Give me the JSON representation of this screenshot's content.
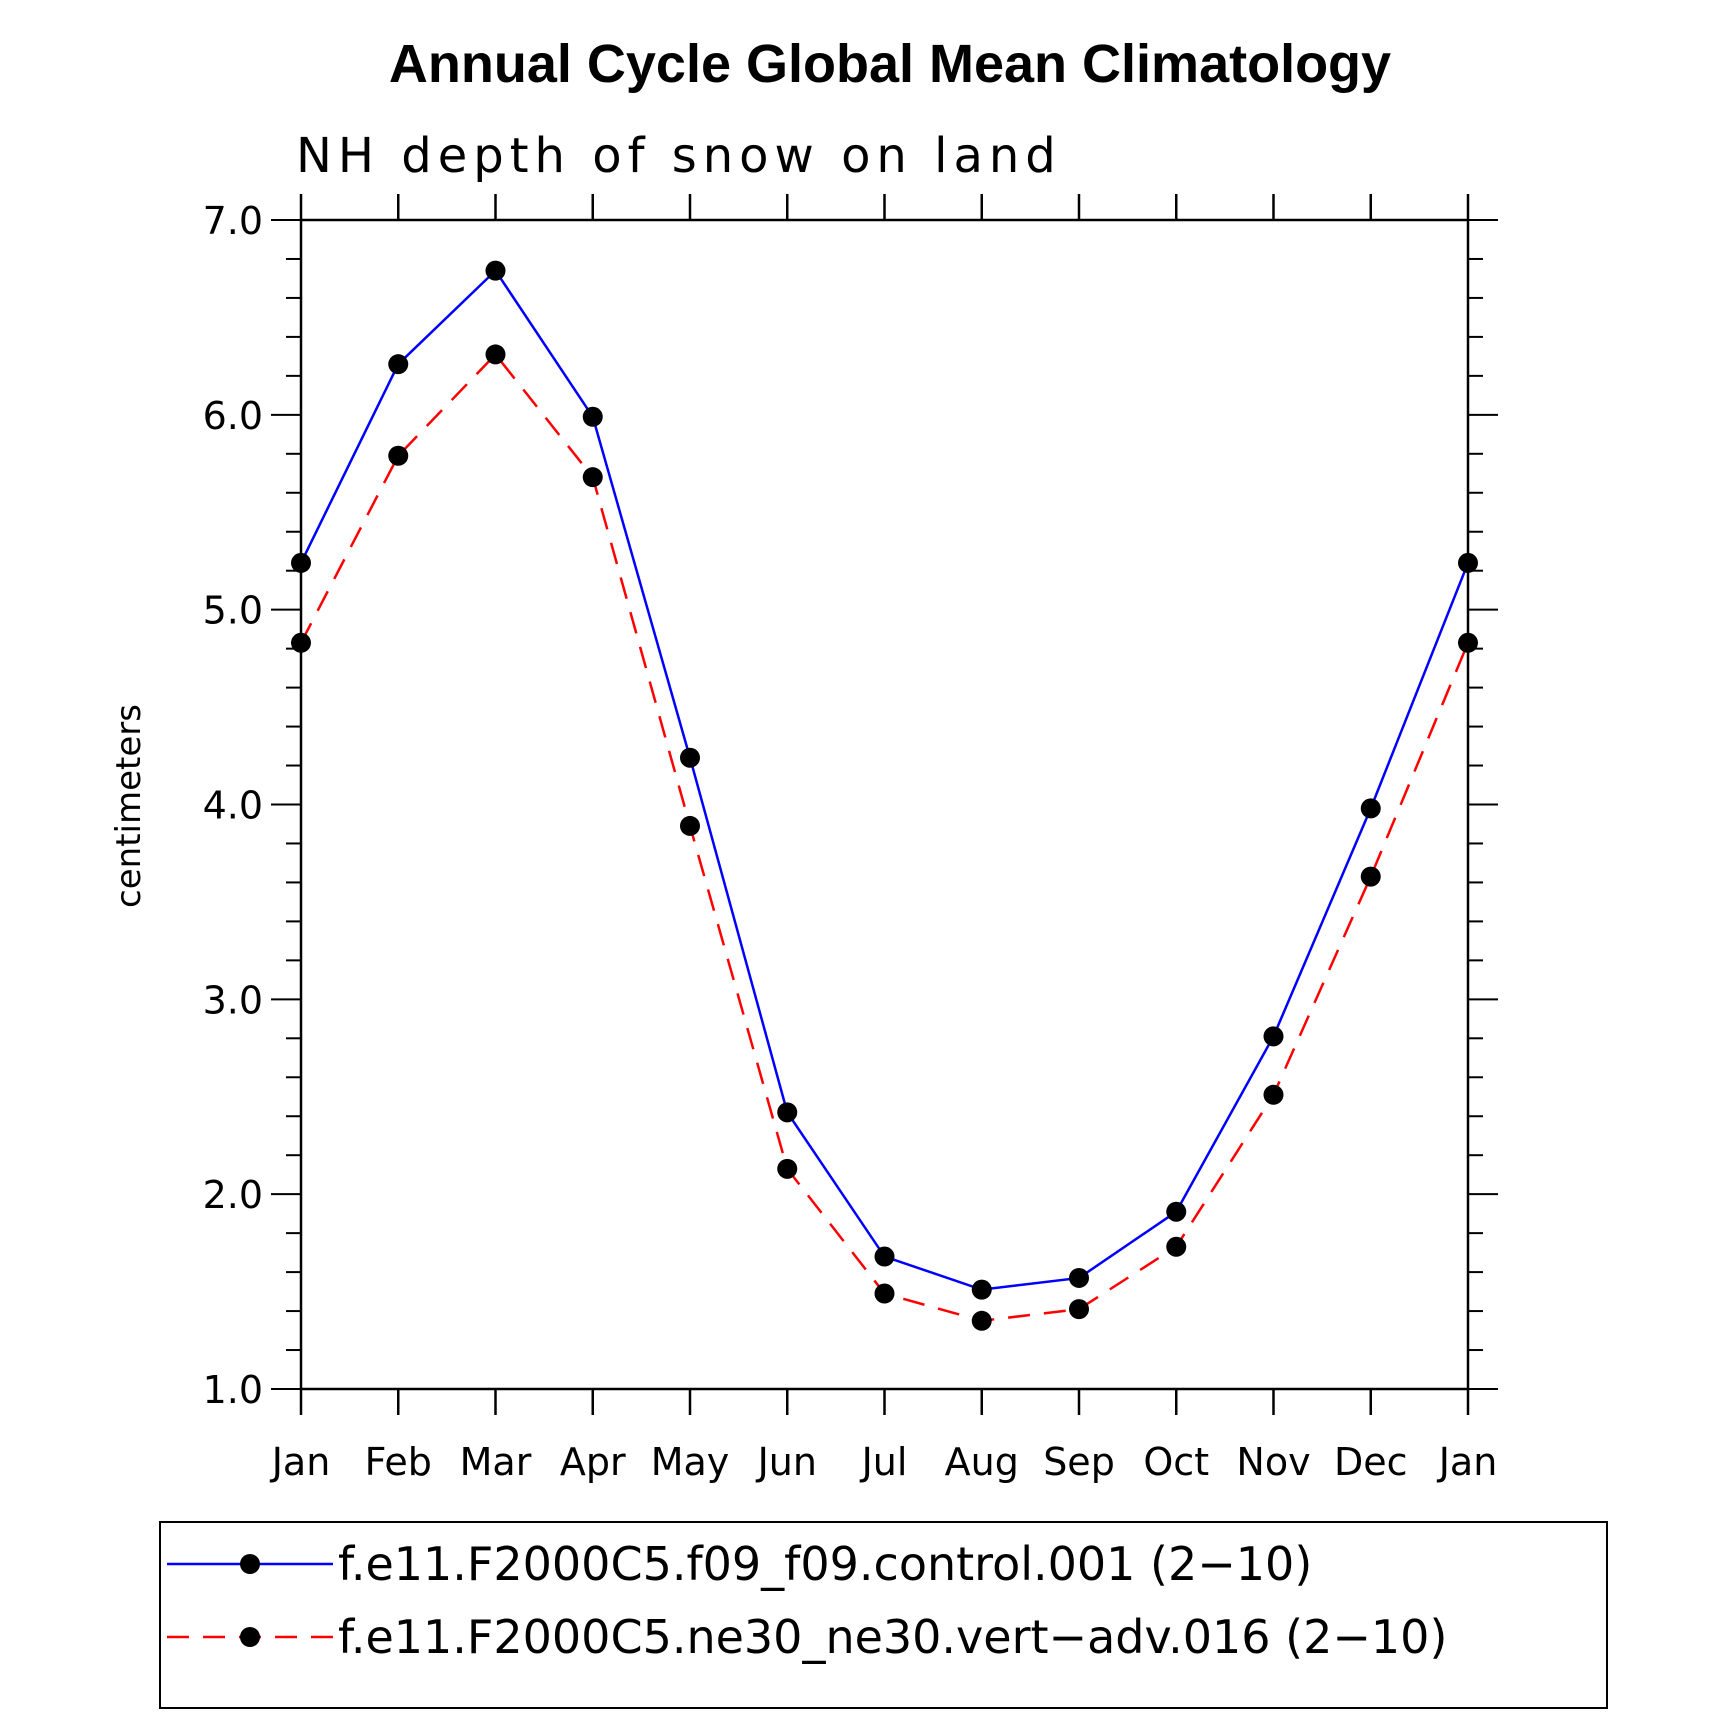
{
  "chart_data": {
    "type": "line",
    "title": "Annual Cycle Global Mean Climatology",
    "subtitle": "NH depth of snow on land",
    "xlabel": "",
    "ylabel": "centimeters",
    "categories": [
      "Jan",
      "Feb",
      "Mar",
      "Apr",
      "May",
      "Jun",
      "Jul",
      "Aug",
      "Sep",
      "Oct",
      "Nov",
      "Dec",
      "Jan"
    ],
    "ylim": [
      1.0,
      7.0
    ],
    "ytick_labels": [
      "1.0",
      "2.0",
      "3.0",
      "4.0",
      "5.0",
      "6.0",
      "7.0"
    ],
    "yticks": [
      1.0,
      2.0,
      3.0,
      4.0,
      5.0,
      6.0,
      7.0
    ],
    "grid": false,
    "legend_position": "bottom",
    "series": [
      {
        "name": "f.e11.F2000C5.f09_f09.control.001 (2−10)",
        "color": "#0000ff",
        "line_style": "solid",
        "marker": "filled-circle",
        "values": [
          5.24,
          6.26,
          6.74,
          5.99,
          4.24,
          2.42,
          1.68,
          1.51,
          1.57,
          1.91,
          2.81,
          3.98,
          5.24
        ]
      },
      {
        "name": "f.e11.F2000C5.ne30_ne30.vert−adv.016 (2−10)",
        "color": "#ff0000",
        "line_style": "dashed",
        "marker": "filled-circle",
        "values": [
          4.83,
          5.79,
          6.31,
          5.68,
          3.89,
          2.13,
          1.49,
          1.35,
          1.41,
          1.73,
          2.51,
          3.63,
          4.83
        ]
      }
    ]
  }
}
